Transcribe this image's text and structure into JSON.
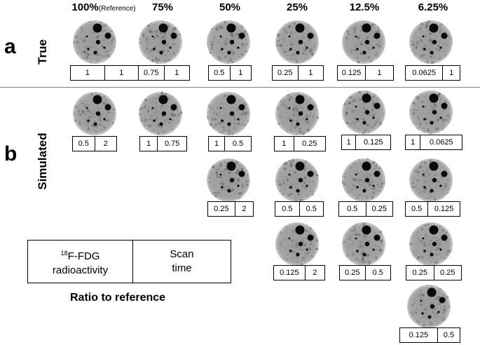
{
  "columns": [
    {
      "label": "100%",
      "note": "(Reference)"
    },
    {
      "label": "75%"
    },
    {
      "label": "50%"
    },
    {
      "label": "25%"
    },
    {
      "label": "12.5%"
    },
    {
      "label": "6.25%"
    }
  ],
  "panels": {
    "a": "a",
    "b": "b"
  },
  "row_labels": {
    "true": "True",
    "simulated": "Simulated"
  },
  "true_row": [
    [
      "1",
      "1"
    ],
    [
      "0.75",
      "1"
    ],
    [
      "0.5",
      "1"
    ],
    [
      "0.25",
      "1"
    ],
    [
      "0.125",
      "1"
    ],
    [
      "0.0625",
      "1"
    ]
  ],
  "simulated": {
    "row1": [
      [
        "0.5",
        "2"
      ],
      [
        "1",
        "0.75"
      ],
      [
        "1",
        "0.5"
      ],
      [
        "1",
        "0.25"
      ],
      [
        "1",
        "0.125"
      ],
      [
        "1",
        "0.0625"
      ]
    ],
    "row2": [
      [
        "0.25",
        "2"
      ],
      [
        "0.5",
        "0.5"
      ],
      [
        "0.5",
        "0.25"
      ],
      [
        "0.5",
        "0.125"
      ]
    ],
    "row3": [
      [
        "0.125",
        "2"
      ],
      [
        "0.25",
        "0.5"
      ],
      [
        "0.25",
        "0.25"
      ]
    ],
    "row4": [
      [
        "0.125",
        "0.5"
      ]
    ]
  },
  "legend": {
    "isotope_sup": "18",
    "left_line1": "F-FDG",
    "left_line2": "radioactivity",
    "right_line1": "Scan",
    "right_line2": "time"
  },
  "caption": "Ratio to reference"
}
